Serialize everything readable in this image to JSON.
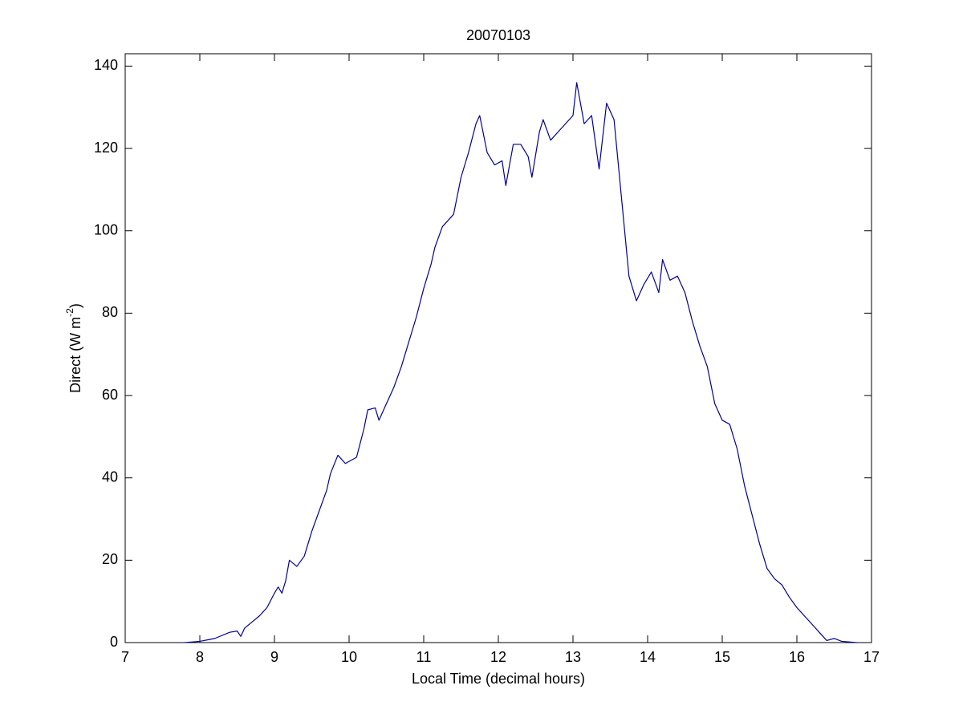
{
  "chart_data": {
    "type": "line",
    "title": "20070103",
    "xlabel": "Local Time (decimal hours)",
    "ylabel": {
      "text": "Direct (W m",
      "superscript": "-2",
      "suffix": ")"
    },
    "xlim": [
      7,
      17
    ],
    "xticks": [
      7,
      8,
      9,
      10,
      11,
      12,
      13,
      14,
      15,
      16,
      17
    ],
    "ylim": [
      0,
      143
    ],
    "yticks": [
      0,
      20,
      40,
      60,
      80,
      100,
      120,
      140
    ],
    "grid": false,
    "series": [
      {
        "color": "#000099",
        "x": [
          7.8,
          8.0,
          8.2,
          8.4,
          8.5,
          8.55,
          8.6,
          8.7,
          8.8,
          8.9,
          9.0,
          9.05,
          9.1,
          9.15,
          9.2,
          9.3,
          9.4,
          9.5,
          9.6,
          9.7,
          9.75,
          9.85,
          9.95,
          10.1,
          10.2,
          10.25,
          10.35,
          10.4,
          10.5,
          10.6,
          10.7,
          10.8,
          10.9,
          11.0,
          11.1,
          11.15,
          11.25,
          11.4,
          11.5,
          11.6,
          11.7,
          11.75,
          11.85,
          11.95,
          12.05,
          12.1,
          12.2,
          12.3,
          12.4,
          12.45,
          12.55,
          12.6,
          12.7,
          12.8,
          12.9,
          13.0,
          13.05,
          13.15,
          13.25,
          13.35,
          13.45,
          13.55,
          13.65,
          13.75,
          13.85,
          13.95,
          14.05,
          14.15,
          14.2,
          14.3,
          14.4,
          14.5,
          14.6,
          14.7,
          14.8,
          14.9,
          15.0,
          15.1,
          15.2,
          15.3,
          15.4,
          15.5,
          15.6,
          15.7,
          15.8,
          15.9,
          16.0,
          16.1,
          16.2,
          16.3,
          16.4,
          16.5,
          16.6,
          16.8
        ],
        "values": [
          0,
          0.3,
          1,
          2.5,
          2.8,
          1.5,
          3.5,
          5,
          6.5,
          8.5,
          12,
          13.5,
          12,
          15,
          20,
          18.5,
          21,
          27,
          32,
          37,
          41,
          45.5,
          43.5,
          45,
          52,
          56.5,
          57,
          54,
          58,
          62,
          67,
          73,
          79,
          86,
          92,
          96,
          101,
          104,
          113,
          119,
          126,
          128,
          119,
          116,
          117,
          111,
          121,
          121,
          118,
          113,
          124,
          127,
          122,
          124,
          126,
          128,
          136,
          126,
          128,
          115,
          131,
          127,
          108,
          89,
          83,
          87,
          90,
          85,
          93,
          88,
          89,
          85,
          78,
          72,
          67,
          58,
          54,
          53,
          47,
          38,
          31,
          24,
          18,
          15.5,
          14,
          11,
          8.5,
          6.5,
          4.5,
          2.5,
          0.5,
          1,
          0.3,
          0
        ]
      }
    ]
  }
}
